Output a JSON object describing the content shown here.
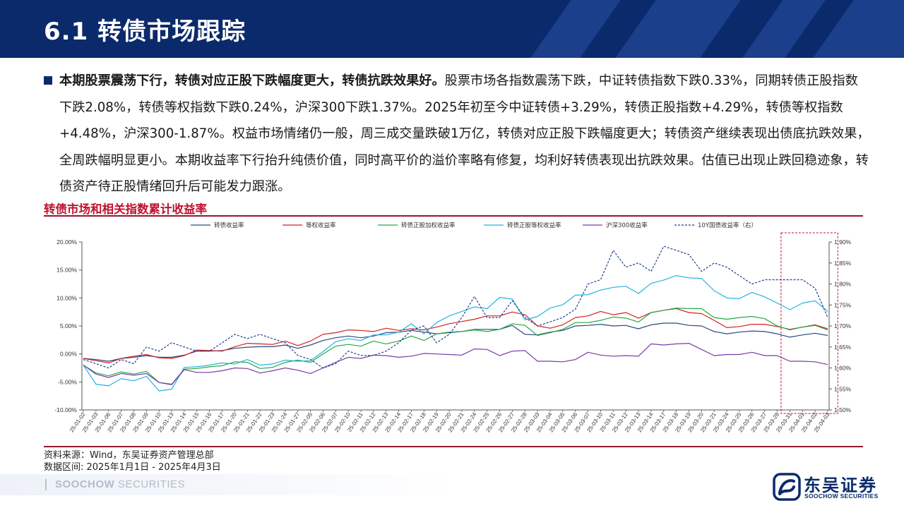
{
  "header": {
    "title": "6.1 转债市场跟踪"
  },
  "bullet": {
    "bold": "本期股票震荡下行，转债对应正股下跌幅度更大，转债抗跌效果好。",
    "text": "股票市场各指数震荡下跌，中证转债指数下跌0.33%，同期转债正股指数下跌2.08%，转债等权指数下跌0.24%，沪深300下跌1.37%。2025年初至今中证转债+3.29%，转债正股指数+4.29%，转债等权指数+4.48%，沪深300-1.87%。权益市场情绪仍一般，周三成交量跌破1万亿，转债对应正股下跌幅度更大；转债资产继续表现出债底抗跌效果，全周跌幅明显更小。本期收益率下行抬升纯债价值，同时高平价的溢价率略有修复，均利好转债表现出抗跌效果。估值已出现止跌回稳迹象，转债资产待正股情绪回升后可能发力跟涨。"
  },
  "chart_title": "转债市场和相关指数累计收益率",
  "chart_data": {
    "type": "line",
    "x": [
      "25-01-02",
      "25-01-03",
      "25-01-06",
      "25-01-07",
      "25-01-08",
      "25-01-09",
      "25-01-10",
      "25-01-13",
      "25-01-14",
      "25-01-15",
      "25-01-16",
      "25-01-17",
      "25-01-20",
      "25-01-21",
      "25-01-22",
      "25-01-23",
      "25-01-24",
      "25-01-27",
      "25-02-05",
      "25-02-06",
      "25-02-07",
      "25-02-10",
      "25-02-11",
      "25-02-12",
      "25-02-13",
      "25-02-14",
      "25-02-17",
      "25-02-18",
      "25-02-19",
      "25-02-20",
      "25-02-21",
      "25-02-24",
      "25-02-25",
      "25-02-26",
      "25-02-27",
      "25-02-28",
      "25-03-03",
      "25-03-04",
      "25-03-05",
      "25-03-06",
      "25-03-07",
      "25-03-10",
      "25-03-11",
      "25-03-12",
      "25-03-13",
      "25-03-14",
      "25-03-17",
      "25-03-18",
      "25-03-19",
      "25-03-20",
      "25-03-21",
      "25-03-24",
      "25-03-25",
      "25-03-26",
      "25-03-27",
      "25-03-28",
      "25-03-31",
      "25-04-01",
      "25-04-02",
      "25-04-03"
    ],
    "left_axis": {
      "min": -10,
      "max": 20,
      "step": 5,
      "format": "pct2"
    },
    "right_axis": {
      "min": 1.5,
      "max": 1.9,
      "step": 0.05,
      "format": "pct2"
    },
    "highlight_range": [
      "25-03-31",
      "25-04-03"
    ],
    "series": [
      {
        "name": "转债收益率",
        "axis": "left",
        "color": "#2b4a80",
        "dash": false,
        "values": [
          -0.8,
          -1.0,
          -1.3,
          -0.8,
          -0.6,
          -0.3,
          -0.6,
          -0.6,
          -0.2,
          0.5,
          0.5,
          0.6,
          1.0,
          1.2,
          1.3,
          1.3,
          1.6,
          1.0,
          1.6,
          2.4,
          2.9,
          3.2,
          2.9,
          3.2,
          3.8,
          3.9,
          4.2,
          3.9,
          3.6,
          3.8,
          4.0,
          4.4,
          4.4,
          4.4,
          5.1,
          3.5,
          3.4,
          3.9,
          4.2,
          5.0,
          5.1,
          5.3,
          5.0,
          5.1,
          4.5,
          5.2,
          5.5,
          5.5,
          5.1,
          5.0,
          4.0,
          3.6,
          3.9,
          4.1,
          4.0,
          3.6,
          3.0,
          3.4,
          3.7,
          3.3
        ]
      },
      {
        "name": "等权收益率",
        "axis": "left",
        "color": "#d42121",
        "dash": false,
        "values": [
          -0.8,
          -1.2,
          -1.6,
          -0.8,
          -0.4,
          -0.1,
          -0.7,
          -0.8,
          -0.3,
          0.7,
          0.6,
          0.5,
          1.3,
          1.9,
          1.8,
          1.7,
          2.3,
          1.5,
          2.3,
          3.5,
          3.8,
          4.3,
          4.2,
          4.0,
          4.6,
          4.2,
          4.5,
          4.3,
          4.8,
          5.4,
          5.8,
          6.2,
          6.8,
          6.8,
          7.5,
          7.0,
          5.0,
          4.6,
          5.2,
          6.5,
          6.8,
          7.6,
          7.0,
          7.4,
          6.4,
          7.4,
          7.8,
          8.1,
          7.4,
          7.2,
          6.0,
          4.7,
          4.9,
          5.3,
          5.3,
          4.9,
          4.4,
          4.8,
          5.2,
          4.5
        ]
      },
      {
        "name": "转债正股加权收益率",
        "axis": "left",
        "color": "#27a847",
        "dash": false,
        "values": [
          -2.0,
          -3.4,
          -3.9,
          -3.2,
          -3.6,
          -3.1,
          -5.1,
          -5.4,
          -2.7,
          -2.6,
          -2.3,
          -2.1,
          -1.4,
          -1.5,
          -2.6,
          -2.4,
          -1.5,
          -1.1,
          -1.5,
          0.0,
          1.4,
          1.7,
          1.4,
          2.3,
          1.8,
          2.3,
          3.2,
          2.4,
          3.6,
          3.9,
          4.0,
          4.3,
          4.0,
          4.4,
          5.4,
          5.1,
          3.3,
          3.8,
          4.4,
          5.6,
          5.6,
          6.0,
          6.6,
          6.4,
          5.7,
          7.4,
          7.8,
          8.2,
          8.1,
          8.1,
          6.5,
          6.2,
          6.5,
          6.7,
          6.3,
          5.0,
          4.3,
          4.8,
          5.1,
          4.3
        ]
      },
      {
        "name": "转债正股等权收益率",
        "axis": "left",
        "color": "#22b4e0",
        "dash": false,
        "values": [
          -2.0,
          -5.4,
          -5.7,
          -4.4,
          -4.8,
          -4.0,
          -6.6,
          -6.3,
          -2.4,
          -2.3,
          -2.0,
          -1.6,
          -1.8,
          -1.0,
          -2.0,
          -1.8,
          -1.1,
          -1.3,
          -1.2,
          0.4,
          2.2,
          2.7,
          2.4,
          3.4,
          3.4,
          3.9,
          5.4,
          3.6,
          5.6,
          6.8,
          7.6,
          8.4,
          8.1,
          10.1,
          9.8,
          6.1,
          6.7,
          8.2,
          8.8,
          10.5,
          10.6,
          11.4,
          11.9,
          12.1,
          10.8,
          12.6,
          13.2,
          14.0,
          13.6,
          13.5,
          11.3,
          10.0,
          9.9,
          11.0,
          10.2,
          9.1,
          7.9,
          9.1,
          9.5,
          7.6
        ]
      },
      {
        "name": "沪深300收益率",
        "axis": "left",
        "color": "#7b3aa6",
        "dash": false,
        "values": [
          -2.0,
          -3.6,
          -4.2,
          -3.5,
          -3.8,
          -3.5,
          -5.1,
          -5.5,
          -2.8,
          -3.3,
          -3.3,
          -3.0,
          -2.5,
          -2.6,
          -3.4,
          -3.0,
          -2.5,
          -2.9,
          -3.5,
          -2.5,
          -1.5,
          -0.6,
          -0.8,
          -0.2,
          -0.3,
          -0.6,
          -0.4,
          0.1,
          0.0,
          -0.1,
          -0.2,
          0.9,
          0.8,
          -0.3,
          0.5,
          0.6,
          -1.3,
          -1.3,
          -1.4,
          -1.0,
          0.3,
          -0.2,
          -0.4,
          -0.3,
          -0.4,
          1.8,
          1.6,
          1.8,
          1.9,
          0.8,
          -0.3,
          -0.1,
          -0.1,
          0.3,
          -0.3,
          -0.3,
          -1.3,
          -1.3,
          -1.4,
          -1.9
        ]
      },
      {
        "name": "10Y国债收益率（右）",
        "axis": "right",
        "color": "#1f3f8f",
        "dash": true,
        "values": [
          1.62,
          1.61,
          1.6,
          1.62,
          1.61,
          1.65,
          1.64,
          1.66,
          1.65,
          1.64,
          1.64,
          1.66,
          1.68,
          1.67,
          1.68,
          1.67,
          1.66,
          1.63,
          1.62,
          1.6,
          1.61,
          1.64,
          1.63,
          1.63,
          1.64,
          1.66,
          1.69,
          1.7,
          1.66,
          1.68,
          1.72,
          1.77,
          1.72,
          1.72,
          1.76,
          1.72,
          1.7,
          1.71,
          1.72,
          1.74,
          1.8,
          1.81,
          1.88,
          1.84,
          1.85,
          1.83,
          1.89,
          1.88,
          1.87,
          1.83,
          1.85,
          1.84,
          1.82,
          1.8,
          1.81,
          1.81,
          1.81,
          1.81,
          1.79,
          1.72
        ]
      }
    ]
  },
  "source": {
    "line1": "资料来源：Wind，东吴证券资产管理总部",
    "line2": "数据区间: 2025年1月1日 - 2025年4月3日"
  },
  "footer": {
    "brand_bold": "SOOCHOW",
    "brand_rest": " SECURITIES"
  },
  "logo": {
    "cn": "东吴证券",
    "en": "SOOCHOW SECURITIES"
  },
  "colors": {
    "header_bg": "#0b2a6b",
    "accent_red": "#c0112d"
  }
}
